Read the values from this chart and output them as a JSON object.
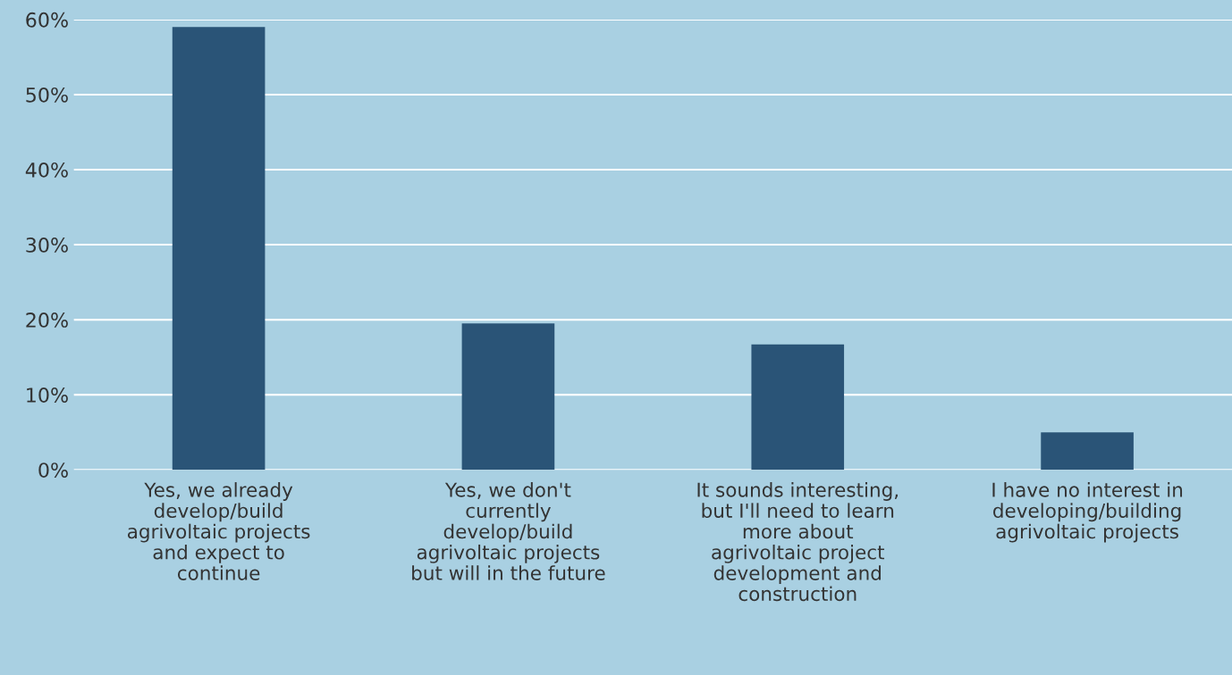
{
  "chart_data": {
    "type": "bar",
    "categories": [
      "Yes, we already\ndevelop/build\nagrivoltaic projects\nand expect to\ncontinue",
      "Yes, we don't\ncurrently\ndevelop/build\nagrivoltaic projects\nbut will in the future",
      "It sounds interesting,\nbut I'll need to learn\nmore about\nagrivoltaic project\ndevelopment and\nconstruction",
      "I have no interest in\ndeveloping/building\nagrivoltaic projects"
    ],
    "values": [
      59,
      19.5,
      16.7,
      5
    ],
    "color": "#2a5477",
    "ylim": [
      0,
      60
    ],
    "yticks": [
      {
        "value": 0,
        "label": "0%"
      },
      {
        "value": 10,
        "label": "10%"
      },
      {
        "value": 20,
        "label": "20%"
      },
      {
        "value": 30,
        "label": "30%"
      },
      {
        "value": 40,
        "label": "40%"
      },
      {
        "value": 50,
        "label": "50%"
      },
      {
        "value": 60,
        "label": "60%"
      }
    ],
    "grid": "y"
  }
}
